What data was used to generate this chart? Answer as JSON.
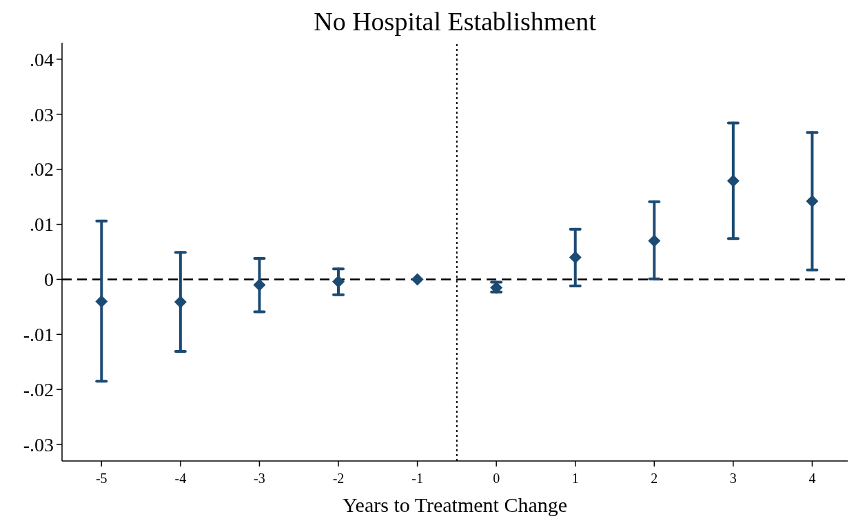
{
  "chart_data": {
    "type": "scatter",
    "title": "No Hospital Establishment",
    "xlabel": "Years to Treatment Change",
    "x": [
      -5,
      -4,
      -3,
      -2,
      -1,
      0,
      1,
      2,
      3,
      4
    ],
    "series": [
      {
        "color": "#1b4a73",
        "values": [
          -0.004,
          -0.0041,
          -0.001,
          -0.0004,
          0,
          -0.0015,
          0.004,
          0.007,
          0.0179,
          0.0142
        ],
        "errors": [
          [
            -0.0185,
            0.0106
          ],
          [
            -0.0131,
            0.0049
          ],
          [
            -0.0059,
            0.0038
          ],
          [
            -0.0028,
            0.0019
          ],
          null,
          [
            -0.0023,
            -0.0005
          ],
          [
            -0.0012,
            0.0091
          ],
          [
            0.0001,
            0.0141
          ],
          [
            0.0074,
            0.0284
          ],
          [
            0.0017,
            0.0267
          ]
        ]
      }
    ],
    "marker": "diamond",
    "xlim": [
      -5.5,
      4.45
    ],
    "xticks": [
      -5,
      -4,
      -3,
      -2,
      -1,
      0,
      1,
      2,
      3,
      4
    ],
    "ylim": [
      -0.033,
      0.043
    ],
    "yticks": [
      {
        "value": -0.03,
        "label": "-.03"
      },
      {
        "value": -0.02,
        "label": "-.02"
      },
      {
        "value": -0.01,
        "label": "-.01"
      },
      {
        "value": 0,
        "label": "0"
      },
      {
        "value": 0.01,
        "label": ".01"
      },
      {
        "value": 0.02,
        "label": ".02"
      },
      {
        "value": 0.03,
        "label": ".03"
      },
      {
        "value": 0.04,
        "label": ".04"
      }
    ],
    "ref_lines": [
      {
        "axis": "y",
        "value": 0,
        "color": "#000000",
        "line_style": "dashed"
      },
      {
        "axis": "x",
        "value": -0.5,
        "color": "#000000",
        "line_style": "dotted"
      }
    ],
    "grid": false
  }
}
